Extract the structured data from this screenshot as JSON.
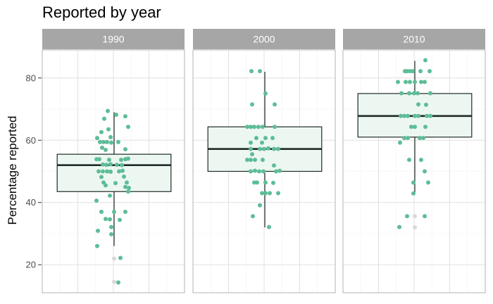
{
  "chart_data": {
    "type": "boxplot",
    "title": "Reported by year",
    "xlabel": "",
    "ylabel": "Percentage reported",
    "ylim": [
      11,
      89
    ],
    "yticks": [
      20,
      40,
      60,
      80
    ],
    "grid": true,
    "facet_by": "year",
    "colors": {
      "point": "#5dbd97",
      "box_fill": "#edf7f2",
      "box_stroke": "#1f2a27",
      "outlier": "#d9d9d9",
      "strip": "#a6a6a6",
      "strip_text": "#ffffff",
      "panel_border": "#b3b3b3",
      "grid_major": "#e0e0e0",
      "grid_minor": "#f2f2f2"
    },
    "panels": [
      {
        "label": "1990",
        "box": {
          "min": 26,
          "q1": 43.5,
          "median": 52,
          "q3": 55.5,
          "max": 69
        },
        "outliers": [
          22,
          14.5
        ],
        "points": [
          {
            "dx": -9,
            "y": 69.4
          },
          {
            "dx": 3,
            "y": 68.2
          },
          {
            "dx": 16,
            "y": 67.7
          },
          {
            "dx": -14,
            "y": 66.9
          },
          {
            "dx": -18,
            "y": 62.6
          },
          {
            "dx": 20,
            "y": 64.3
          },
          {
            "dx": -8,
            "y": 63.5
          },
          {
            "dx": -24,
            "y": 60.7
          },
          {
            "dx": -5,
            "y": 61.0
          },
          {
            "dx": -20,
            "y": 59.4
          },
          {
            "dx": -15,
            "y": 59.4
          },
          {
            "dx": -10,
            "y": 59.4
          },
          {
            "dx": -4,
            "y": 59.2
          },
          {
            "dx": 6,
            "y": 59.4
          },
          {
            "dx": -17,
            "y": 57.6
          },
          {
            "dx": -12,
            "y": 56.9
          },
          {
            "dx": 16,
            "y": 57.1
          },
          {
            "dx": -25,
            "y": 53.9
          },
          {
            "dx": -21,
            "y": 53.9
          },
          {
            "dx": -7,
            "y": 53.7
          },
          {
            "dx": 10,
            "y": 53.7
          },
          {
            "dx": 16,
            "y": 53.9
          },
          {
            "dx": 20,
            "y": 54.1
          },
          {
            "dx": -16,
            "y": 52.2
          },
          {
            "dx": -11,
            "y": 52.1
          },
          {
            "dx": -5,
            "y": 52.3
          },
          {
            "dx": 4,
            "y": 52.1
          },
          {
            "dx": 11,
            "y": 52.0
          },
          {
            "dx": -22,
            "y": 50.0
          },
          {
            "dx": -16,
            "y": 50.0
          },
          {
            "dx": -10,
            "y": 50.0
          },
          {
            "dx": -5,
            "y": 49.9
          },
          {
            "dx": 7,
            "y": 50.0
          },
          {
            "dx": 12,
            "y": 50.2
          },
          {
            "dx": -18,
            "y": 48.2
          },
          {
            "dx": 14,
            "y": 48.3
          },
          {
            "dx": -15,
            "y": 46.4
          },
          {
            "dx": 2,
            "y": 46.2
          },
          {
            "dx": 18,
            "y": 46.4
          },
          {
            "dx": -12,
            "y": 45.5
          },
          {
            "dx": 16,
            "y": 45.0
          },
          {
            "dx": 21,
            "y": 44.7
          },
          {
            "dx": 20,
            "y": 43.5
          },
          {
            "dx": -6,
            "y": 42.2
          },
          {
            "dx": -25,
            "y": 40.6
          },
          {
            "dx": -18,
            "y": 37.0
          },
          {
            "dx": 0,
            "y": 37.0
          },
          {
            "dx": 16,
            "y": 37.0
          },
          {
            "dx": -12,
            "y": 34.7
          },
          {
            "dx": -6,
            "y": 34.6
          },
          {
            "dx": 8,
            "y": 34.4
          },
          {
            "dx": -4,
            "y": 32.1
          },
          {
            "dx": -23,
            "y": 30.9
          },
          {
            "dx": -4,
            "y": 29.8
          },
          {
            "dx": -24,
            "y": 26.0
          },
          {
            "dx": 9,
            "y": 22.2
          },
          {
            "dx": 6,
            "y": 14.3
          }
        ]
      },
      {
        "label": "2000",
        "box": {
          "min": 32,
          "q1": 50,
          "median": 57.2,
          "q3": 64.3,
          "max": 82
        },
        "outliers": [],
        "points": [
          {
            "dx": -19,
            "y": 82.2
          },
          {
            "dx": -7,
            "y": 82.2
          },
          {
            "dx": 1,
            "y": 75.0
          },
          {
            "dx": -18,
            "y": 71.5
          },
          {
            "dx": 14,
            "y": 71.5
          },
          {
            "dx": -25,
            "y": 64.3
          },
          {
            "dx": -20,
            "y": 64.3
          },
          {
            "dx": -15,
            "y": 64.3
          },
          {
            "dx": -9,
            "y": 64.3
          },
          {
            "dx": -3,
            "y": 64.3
          },
          {
            "dx": 14,
            "y": 64.3
          },
          {
            "dx": -12,
            "y": 60.7
          },
          {
            "dx": 1,
            "y": 60.7
          },
          {
            "dx": 11,
            "y": 60.7
          },
          {
            "dx": -20,
            "y": 59.2
          },
          {
            "dx": -4,
            "y": 59.2
          },
          {
            "dx": -20,
            "y": 57.2
          },
          {
            "dx": -7,
            "y": 57.2
          },
          {
            "dx": -1,
            "y": 57.2
          },
          {
            "dx": 5,
            "y": 57.4
          },
          {
            "dx": 13,
            "y": 57.2
          },
          {
            "dx": 19,
            "y": 57.2
          },
          {
            "dx": -18,
            "y": 55.5
          },
          {
            "dx": -25,
            "y": 53.7
          },
          {
            "dx": -20,
            "y": 53.7
          },
          {
            "dx": -14,
            "y": 53.7
          },
          {
            "dx": -3,
            "y": 53.7
          },
          {
            "dx": 13,
            "y": 51.9
          },
          {
            "dx": -20,
            "y": 50.0
          },
          {
            "dx": -14,
            "y": 50.2
          },
          {
            "dx": -8,
            "y": 50.0
          },
          {
            "dx": -2,
            "y": 50.0
          },
          {
            "dx": 16,
            "y": 50.0
          },
          {
            "dx": 21,
            "y": 50.2
          },
          {
            "dx": -15,
            "y": 46.4
          },
          {
            "dx": -11,
            "y": 46.4
          },
          {
            "dx": 1,
            "y": 46.4
          },
          {
            "dx": 12,
            "y": 46.3
          },
          {
            "dx": -4,
            "y": 43.0
          },
          {
            "dx": 1,
            "y": 43.0
          },
          {
            "dx": 7,
            "y": 43.0
          },
          {
            "dx": 19,
            "y": 43.0
          },
          {
            "dx": -7,
            "y": 39.1
          },
          {
            "dx": -17,
            "y": 35.6
          },
          {
            "dx": 6,
            "y": 32.1
          }
        ]
      },
      {
        "label": "2010",
        "box": {
          "min": 43,
          "q1": 61,
          "median": 67.8,
          "q3": 75,
          "max": 85.5
        },
        "outliers": [
          35.6,
          32
        ],
        "points": [
          {
            "dx": 15,
            "y": 85.7
          },
          {
            "dx": -14,
            "y": 82.2
          },
          {
            "dx": -11,
            "y": 82.2
          },
          {
            "dx": -7,
            "y": 82.2
          },
          {
            "dx": -3,
            "y": 82.2
          },
          {
            "dx": 8,
            "y": 82.2
          },
          {
            "dx": 21,
            "y": 82.2
          },
          {
            "dx": -24,
            "y": 78.7
          },
          {
            "dx": -13,
            "y": 78.7
          },
          {
            "dx": -7,
            "y": 78.7
          },
          {
            "dx": 0,
            "y": 78.7
          },
          {
            "dx": 9,
            "y": 78.7
          },
          {
            "dx": 14,
            "y": 78.7
          },
          {
            "dx": -19,
            "y": 75.1
          },
          {
            "dx": -8,
            "y": 75.1
          },
          {
            "dx": -1,
            "y": 75.1
          },
          {
            "dx": 4,
            "y": 75.1
          },
          {
            "dx": 22,
            "y": 75.1
          },
          {
            "dx": 5,
            "y": 71.5
          },
          {
            "dx": 16,
            "y": 71.4
          },
          {
            "dx": -20,
            "y": 67.8
          },
          {
            "dx": -15,
            "y": 67.8
          },
          {
            "dx": -10,
            "y": 67.8
          },
          {
            "dx": 0,
            "y": 67.8
          },
          {
            "dx": 5,
            "y": 67.8
          },
          {
            "dx": 17,
            "y": 67.8
          },
          {
            "dx": 22,
            "y": 67.8
          },
          {
            "dx": -5,
            "y": 64.3
          },
          {
            "dx": 0,
            "y": 64.3
          },
          {
            "dx": 15,
            "y": 64.3
          },
          {
            "dx": -15,
            "y": 60.7
          },
          {
            "dx": -10,
            "y": 60.7
          },
          {
            "dx": 7,
            "y": 60.7
          },
          {
            "dx": 12,
            "y": 60.7
          },
          {
            "dx": -21,
            "y": 59.2
          },
          {
            "dx": -8,
            "y": 53.7
          },
          {
            "dx": 9,
            "y": 53.7
          },
          {
            "dx": 14,
            "y": 50.0
          },
          {
            "dx": 19,
            "y": 46.4
          },
          {
            "dx": -2,
            "y": 46.4
          },
          {
            "dx": -2,
            "y": 42.9
          },
          {
            "dx": -11,
            "y": 35.6
          },
          {
            "dx": 14,
            "y": 35.6
          },
          {
            "dx": -22,
            "y": 32.1
          }
        ]
      }
    ]
  }
}
